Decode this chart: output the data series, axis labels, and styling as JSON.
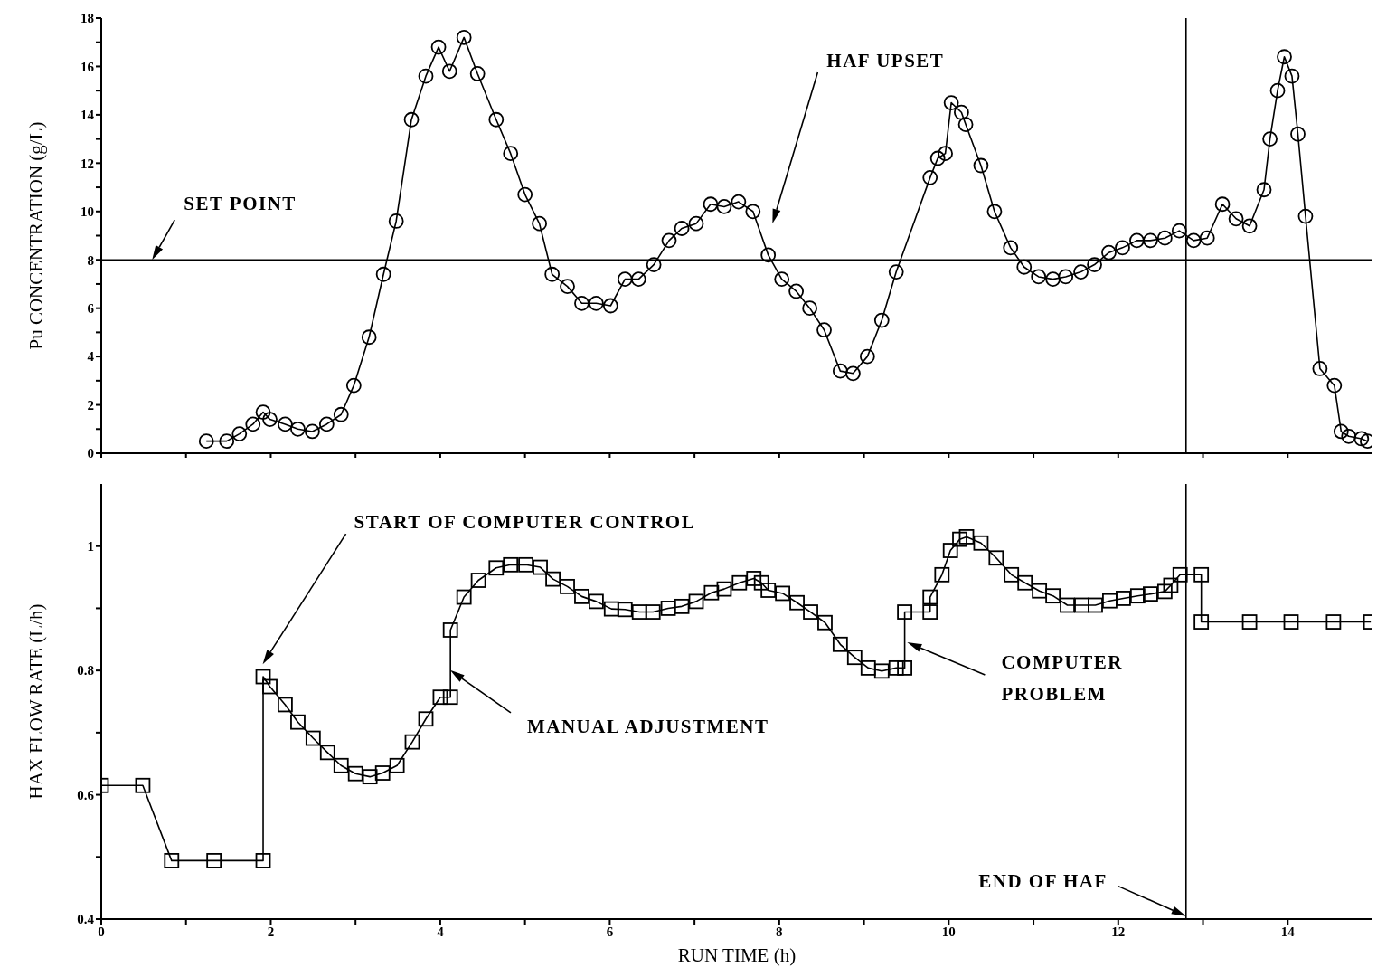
{
  "chart_data": [
    {
      "type": "line",
      "ylabel": "Pu CONCENTRATION (g/L)",
      "xlim": [
        0,
        15
      ],
      "xticks": [
        0,
        {
          "value": 1,
          "label": null
        },
        2,
        {
          "value": 3,
          "label": null
        },
        4,
        {
          "value": 5,
          "label": null
        },
        6,
        {
          "value": 7,
          "label": null
        },
        8,
        {
          "value": 9,
          "label": null
        },
        10,
        {
          "value": 11,
          "label": null
        },
        12,
        {
          "value": 13,
          "label": null
        },
        14
      ],
      "ylim": [
        0,
        18
      ],
      "yticks": [
        0,
        {
          "value": 1,
          "label": null
        },
        2,
        {
          "value": 3,
          "label": null
        },
        4,
        {
          "value": 5,
          "label": null
        },
        6,
        {
          "value": 7,
          "label": null
        },
        8,
        {
          "value": 9,
          "label": null
        },
        10,
        {
          "value": 11,
          "label": null
        },
        12,
        {
          "value": 13,
          "label": null
        },
        14,
        {
          "value": 15,
          "label": null
        },
        16,
        {
          "value": 17,
          "label": null
        },
        18
      ],
      "tick_labels": "y",
      "marker": "circle",
      "series": [
        {
          "color": "#000000",
          "x": [
            1.24,
            1.48,
            1.63,
            1.79,
            1.91,
            1.99,
            2.17,
            2.32,
            2.49,
            2.66,
            2.83,
            2.98,
            3.16,
            3.33,
            3.48,
            3.66,
            3.83,
            3.98,
            4.11,
            4.28,
            4.44,
            4.66,
            4.83,
            5.0,
            5.17,
            5.32,
            5.5,
            5.67,
            5.84,
            6.01,
            6.18,
            6.34,
            6.52,
            6.7,
            6.85,
            7.02,
            7.19,
            7.35,
            7.52,
            7.69,
            7.87,
            8.03,
            8.2,
            8.36,
            8.53,
            8.72,
            8.87,
            9.04,
            9.21,
            9.38,
            9.78,
            9.87,
            9.96,
            10.03,
            10.15,
            10.2,
            10.38,
            10.54,
            10.73,
            10.89,
            11.06,
            11.23,
            11.38,
            11.56,
            11.72,
            11.89,
            12.05,
            12.22,
            12.38,
            12.55,
            12.72,
            12.89,
            13.05,
            13.23,
            13.39,
            13.55,
            13.72,
            13.79,
            13.88,
            13.96,
            14.05,
            14.12,
            14.21,
            14.38,
            14.55,
            14.63,
            14.72,
            14.87,
            14.94
          ],
          "values": [
            0.5,
            0.5,
            0.8,
            1.2,
            1.7,
            1.4,
            1.2,
            1.0,
            0.9,
            1.2,
            1.6,
            2.8,
            4.8,
            7.4,
            9.6,
            13.8,
            15.6,
            16.8,
            15.8,
            17.2,
            15.7,
            13.8,
            12.4,
            10.7,
            9.5,
            7.4,
            6.9,
            6.2,
            6.2,
            6.1,
            7.2,
            7.2,
            7.8,
            8.8,
            9.3,
            9.5,
            10.3,
            10.2,
            10.4,
            10.0,
            8.2,
            7.2,
            6.7,
            6.0,
            5.1,
            3.4,
            3.3,
            4.0,
            5.5,
            7.5,
            11.4,
            12.2,
            12.4,
            14.5,
            14.1,
            13.6,
            11.9,
            10.0,
            8.5,
            7.7,
            7.3,
            7.2,
            7.3,
            7.5,
            7.8,
            8.3,
            8.5,
            8.8,
            8.8,
            8.9,
            9.2,
            8.8,
            8.9,
            10.3,
            9.7,
            9.4,
            10.9,
            13.0,
            15.0,
            16.4,
            15.6,
            13.2,
            9.8,
            3.5,
            2.8,
            0.9,
            0.7,
            0.6,
            0.5
          ]
        }
      ],
      "ref_lines": [
        {
          "axis": "y",
          "value": 8,
          "label": "SET POINT",
          "color": "#000000"
        },
        {
          "axis": "x",
          "value": 12.8,
          "color": "#000000"
        }
      ],
      "annotations": [
        "HAF UPSET"
      ]
    },
    {
      "type": "line",
      "xlabel": "RUN TIME (h)",
      "ylabel": "HAX FLOW RATE (L/h)",
      "xlim": [
        0,
        15
      ],
      "xticks": [
        0,
        {
          "value": 1,
          "label": null
        },
        2,
        {
          "value": 3,
          "label": null
        },
        4,
        {
          "value": 5,
          "label": null
        },
        6,
        {
          "value": 7,
          "label": null
        },
        8,
        {
          "value": 9,
          "label": null
        },
        10,
        {
          "value": 11,
          "label": null
        },
        12,
        {
          "value": 13,
          "label": null
        },
        14
      ],
      "ylim": [
        0.4,
        1.1
      ],
      "yticks": [
        0.4,
        {
          "value": 0.5,
          "label": null
        },
        0.6,
        {
          "value": 0.7,
          "label": null
        },
        0.8,
        {
          "value": 0.9,
          "label": null
        },
        1
      ],
      "marker": "square",
      "series": [
        {
          "color": "#000000",
          "x": [
            0,
            0.49,
            0.83,
            1.33,
            1.91,
            1.91,
            1.99,
            2.17,
            2.32,
            2.5,
            2.67,
            2.83,
            3.0,
            3.17,
            3.32,
            3.49,
            3.67,
            3.83,
            4.0,
            4.12,
            4.12,
            4.28,
            4.45,
            4.66,
            4.83,
            5.01,
            5.18,
            5.33,
            5.5,
            5.67,
            5.84,
            6.02,
            6.18,
            6.35,
            6.51,
            6.69,
            6.85,
            7.02,
            7.2,
            7.35,
            7.53,
            7.7,
            7.79,
            7.87,
            8.04,
            8.21,
            8.37,
            8.54,
            8.72,
            8.89,
            9.05,
            9.21,
            9.38,
            9.48,
            9.48,
            9.78,
            9.78,
            9.92,
            10.02,
            10.13,
            10.21,
            10.38,
            10.56,
            10.74,
            10.9,
            11.07,
            11.23,
            11.4,
            11.57,
            11.73,
            11.9,
            12.06,
            12.23,
            12.38,
            12.55,
            12.62,
            12.73,
            12.98,
            12.98,
            13.55,
            14.04,
            14.54,
            14.98
          ],
          "values": [
            0.615,
            0.615,
            0.494,
            0.494,
            0.494,
            0.79,
            0.774,
            0.745,
            0.717,
            0.691,
            0.668,
            0.647,
            0.634,
            0.629,
            0.635,
            0.647,
            0.685,
            0.722,
            0.757,
            0.757,
            0.865,
            0.918,
            0.945,
            0.965,
            0.97,
            0.97,
            0.966,
            0.947,
            0.935,
            0.919,
            0.911,
            0.899,
            0.898,
            0.894,
            0.894,
            0.9,
            0.903,
            0.911,
            0.925,
            0.931,
            0.941,
            0.948,
            0.941,
            0.929,
            0.924,
            0.909,
            0.894,
            0.877,
            0.842,
            0.821,
            0.804,
            0.799,
            0.804,
            0.804,
            0.894,
            0.894,
            0.918,
            0.954,
            0.993,
            1.011,
            1.015,
            1.005,
            0.981,
            0.954,
            0.941,
            0.928,
            0.92,
            0.905,
            0.905,
            0.905,
            0.912,
            0.916,
            0.92,
            0.923,
            0.927,
            0.937,
            0.954,
            0.954,
            0.878,
            0.878,
            0.878,
            0.878,
            0.878
          ]
        }
      ],
      "ref_lines": [
        {
          "axis": "x",
          "value": 12.8,
          "label": "END OF HAF",
          "color": "#000000"
        }
      ],
      "annotations": [
        "START OF COMPUTER CONTROL",
        "MANUAL ADJUSTMENT",
        "COMPUTER PROBLEM"
      ]
    }
  ]
}
